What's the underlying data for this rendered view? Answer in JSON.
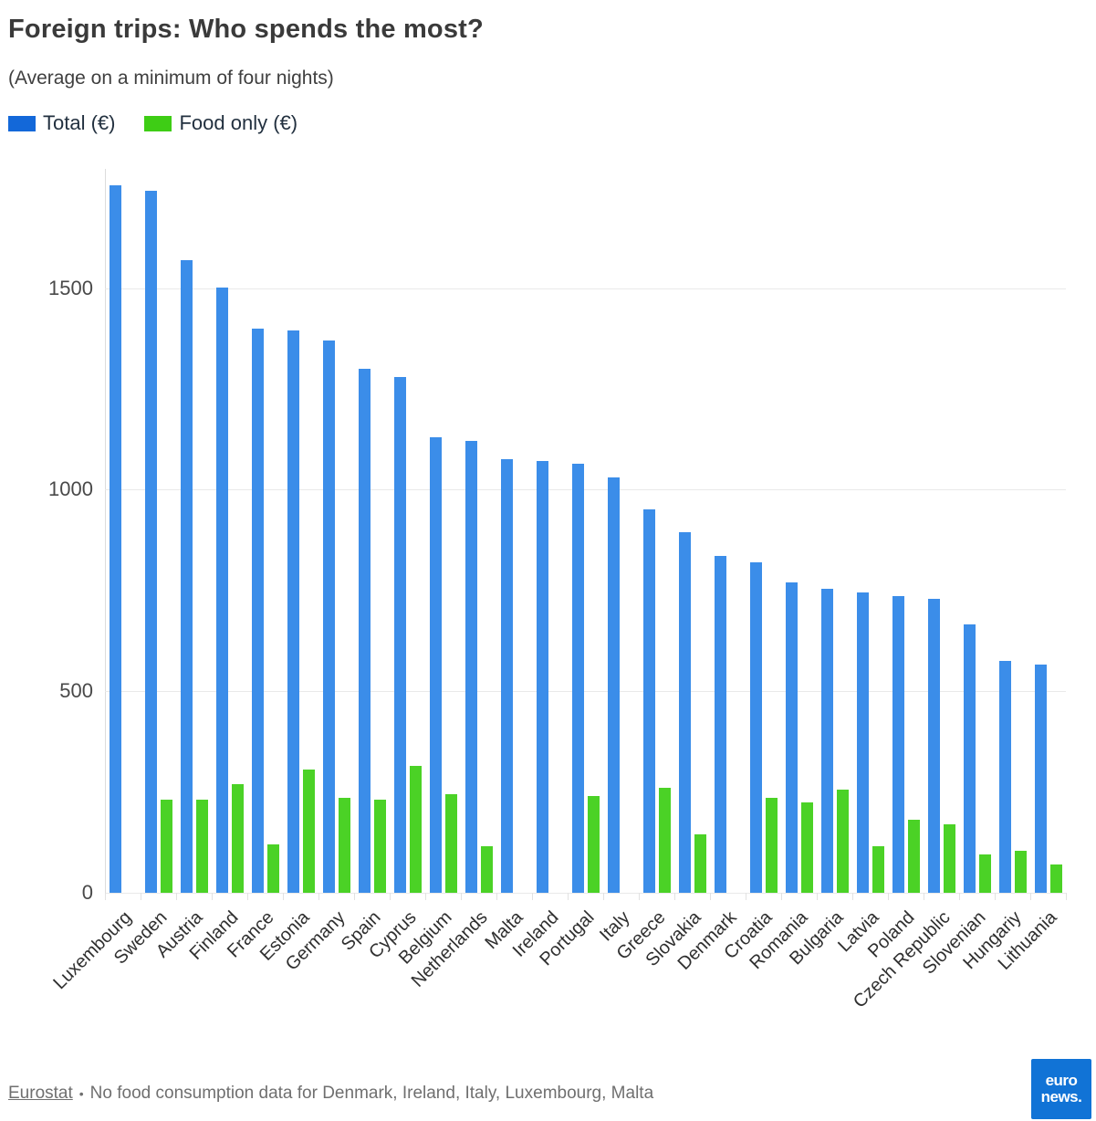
{
  "header": {
    "title": "Foreign trips: Who spends the most?",
    "subtitle": "(Average on a minimum of four nights)"
  },
  "legend": [
    {
      "label": "Total (€)",
      "color": "#1368d9"
    },
    {
      "label": "Food only (€)",
      "color": "#3ecd15"
    }
  ],
  "chart_data": {
    "type": "bar",
    "title": "Foreign trips: Who spends the most?",
    "subtitle": "(Average on a minimum of four nights)",
    "categories": [
      "Luxembourg",
      "Sweden",
      "Austria",
      "Finland",
      "France",
      "Estonia",
      "Germany",
      "Spain",
      "Cyprus",
      "Belgium",
      "Netherlands",
      "Malta",
      "Ireland",
      "Portugal",
      "Italy",
      "Greece",
      "Slovakia",
      "Denmark",
      "Croatia",
      "Romania",
      "Bulgaria",
      "Latvia",
      "Poland",
      "Czech Republic",
      "Slovenian",
      "Hungariy",
      "Lithuania"
    ],
    "series": [
      {
        "name": "Total (€)",
        "color": "#3b8de9",
        "values": [
          1755,
          1740,
          1570,
          1500,
          1400,
          1395,
          1370,
          1300,
          1280,
          1130,
          1120,
          1075,
          1070,
          1065,
          1030,
          950,
          895,
          835,
          820,
          770,
          755,
          745,
          735,
          730,
          665,
          575,
          565
        ]
      },
      {
        "name": "Food only (€)",
        "color": "#4bd226",
        "values": [
          null,
          230,
          230,
          270,
          120,
          305,
          235,
          230,
          315,
          245,
          115,
          null,
          null,
          240,
          null,
          260,
          145,
          null,
          235,
          225,
          255,
          115,
          180,
          170,
          95,
          105,
          70
        ]
      }
    ],
    "ylabel": "",
    "xlabel": "",
    "ylim": [
      0,
      1800
    ],
    "yticks": [
      0,
      500,
      1000,
      1500
    ],
    "grid": true,
    "legend_position": "top-left"
  },
  "footer": {
    "source_label": "Eurostat",
    "separator": "•",
    "note": "No food consumption data for Denmark, Ireland, Italy, Luxembourg, Malta",
    "logo": {
      "line1": "euro",
      "line2": "news.",
      "bg_color": "#1173d6"
    }
  }
}
